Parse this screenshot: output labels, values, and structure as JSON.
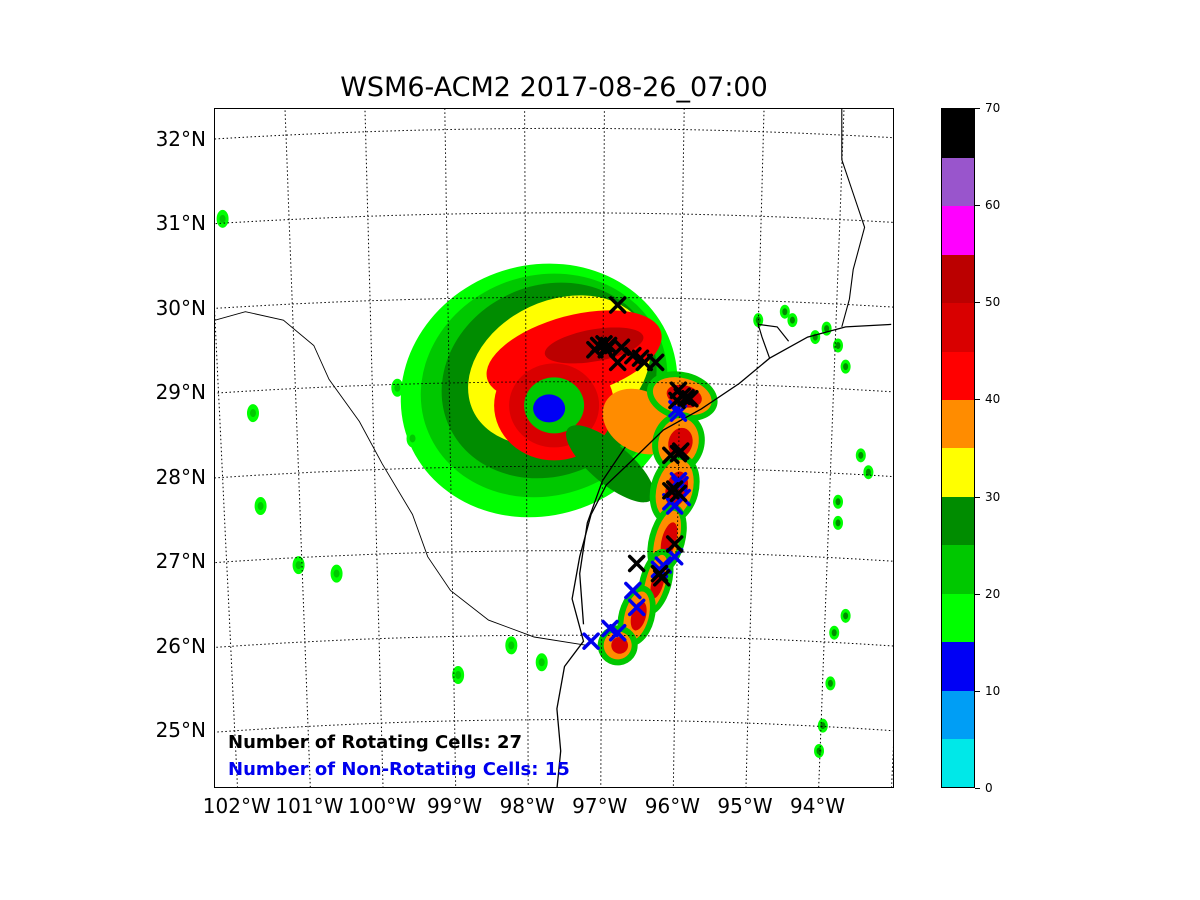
{
  "title": "WSM6-ACM2 2017-08-26_07:00",
  "lat_labels": [
    {
      "value": 32,
      "text": "32°N"
    },
    {
      "value": 31,
      "text": "31°N"
    },
    {
      "value": 30,
      "text": "30°N"
    },
    {
      "value": 29,
      "text": "29°N"
    },
    {
      "value": 28,
      "text": "28°N"
    },
    {
      "value": 27,
      "text": "27°N"
    },
    {
      "value": 26,
      "text": "26°N"
    },
    {
      "value": 25,
      "text": "25°N"
    }
  ],
  "lon_labels": [
    {
      "value": -102,
      "text": "102°W"
    },
    {
      "value": -101,
      "text": "101°W"
    },
    {
      "value": -100,
      "text": "100°W"
    },
    {
      "value": -99,
      "text": "99°W"
    },
    {
      "value": -98,
      "text": "98°W"
    },
    {
      "value": -97,
      "text": "97°W"
    },
    {
      "value": -96,
      "text": "96°W"
    },
    {
      "value": -95,
      "text": "95°W"
    },
    {
      "value": -94,
      "text": "94°W"
    }
  ],
  "extent": {
    "lon_min": -102.1,
    "lon_max": -93.15,
    "lat_min": 24.25,
    "lat_max": 32.3
  },
  "annotations": {
    "rotating": "Number of Rotating Cells: 27",
    "non_rotating": "Number of Non-Rotating Cells: 15",
    "rotating_color": "#000000",
    "non_rotating_color": "#0000ee"
  },
  "colorbar": {
    "ticks": [
      "0",
      "10",
      "20",
      "30",
      "40",
      "50",
      "60",
      "70"
    ],
    "min": 0,
    "max": 70,
    "colors": [
      "#00e8e8",
      "#009ef5",
      "#0000f5",
      "#00ff00",
      "#00c800",
      "#008c00",
      "#ffff00",
      "#ff8c00",
      "#ff0000",
      "#d90000",
      "#bb0000",
      "#ff00ff",
      "#9955cc",
      "#000000"
    ]
  },
  "rotating_cells": [
    [
      -96.8,
      29.98
    ],
    [
      -97.05,
      29.5
    ],
    [
      -96.98,
      29.52
    ],
    [
      -96.92,
      29.5
    ],
    [
      -97.1,
      29.45
    ],
    [
      -96.75,
      29.48
    ],
    [
      -96.6,
      29.38
    ],
    [
      -96.8,
      29.3
    ],
    [
      -96.45,
      29.3
    ],
    [
      -96.0,
      28.97
    ],
    [
      -95.95,
      28.9
    ],
    [
      -95.85,
      28.87
    ],
    [
      -96.02,
      28.85
    ],
    [
      -96.0,
      28.22
    ],
    [
      -96.05,
      27.8
    ],
    [
      -96.0,
      27.75
    ],
    [
      -96.1,
      27.78
    ],
    [
      -96.05,
      27.15
    ],
    [
      -96.55,
      26.92
    ],
    [
      -96.22,
      26.75
    ],
    [
      -95.9,
      28.88
    ],
    [
      -96.3,
      29.3
    ],
    [
      -96.5,
      29.35
    ],
    [
      -96.95,
      29.45
    ],
    [
      -96.1,
      28.2
    ],
    [
      -96.25,
      26.8
    ],
    [
      -95.97,
      28.25
    ]
  ],
  "non_rotating_cells": [
    [
      -96.0,
      27.9
    ],
    [
      -95.95,
      27.7
    ],
    [
      -96.05,
      27.6
    ],
    [
      -96.1,
      27.65
    ],
    [
      -96.25,
      26.85
    ],
    [
      -96.55,
      26.4
    ],
    [
      -96.8,
      26.1
    ],
    [
      -97.15,
      26.0
    ],
    [
      -96.0,
      28.7
    ],
    [
      -96.05,
      27.0
    ],
    [
      -96.6,
      26.6
    ],
    [
      -96.2,
      26.9
    ],
    [
      -96.9,
      26.15
    ],
    [
      -95.98,
      27.85
    ],
    [
      -96.02,
      28.75
    ]
  ]
}
